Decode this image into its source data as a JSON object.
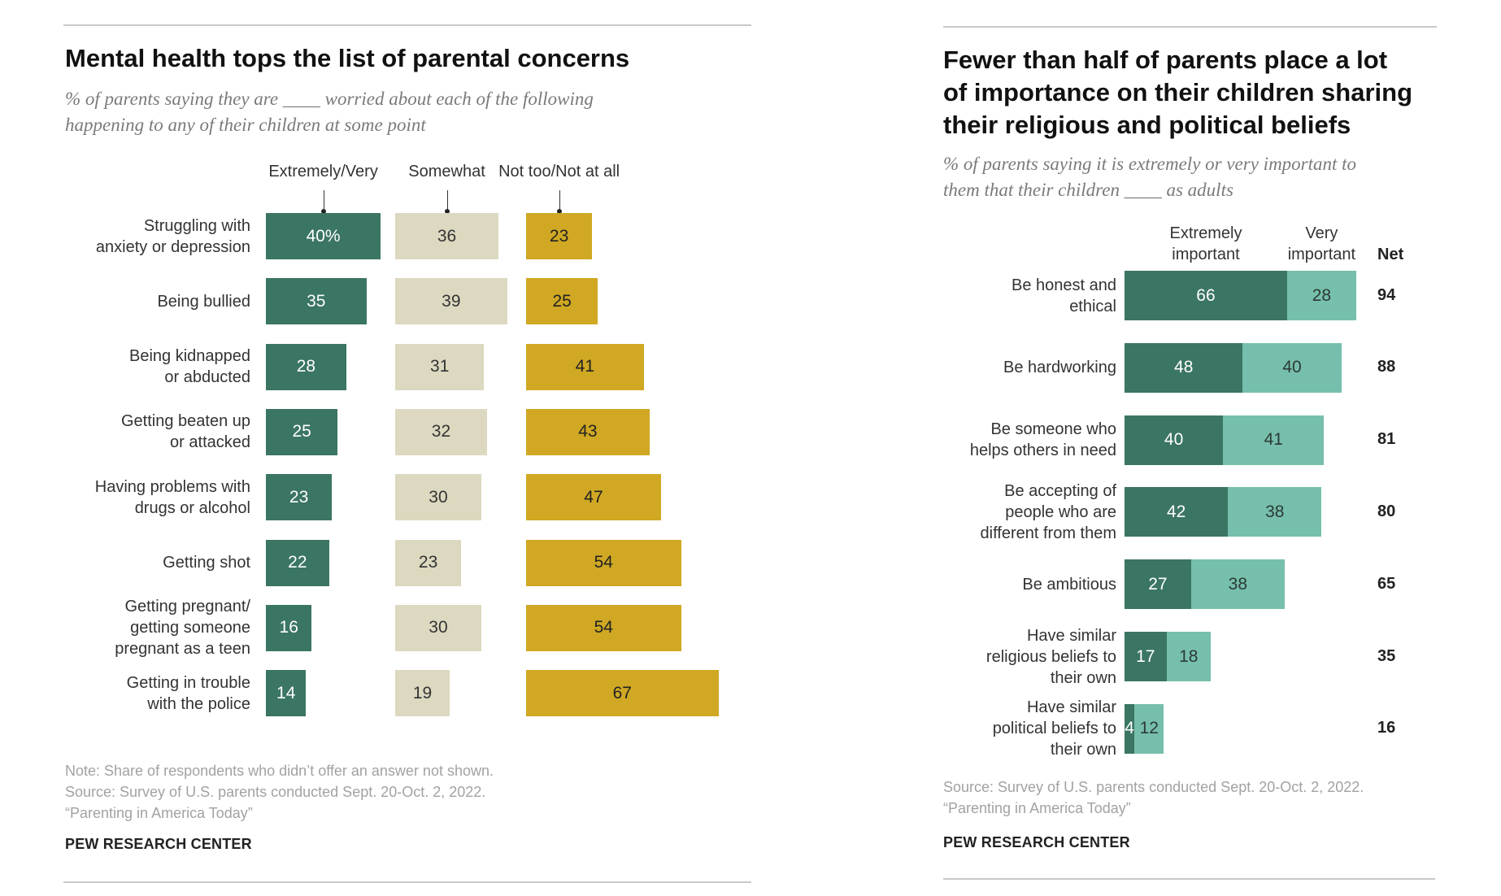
{
  "colors": {
    "extremely_very": "#3b7564",
    "somewhat": "#dcd9c0",
    "not_too": "#d0a823",
    "extremely_important": "#3b7564",
    "very_important": "#76bfac"
  },
  "left": {
    "title": "Mental health tops the list of parental concerns",
    "subtitle_lines": [
      "% of parents saying they are ____ worried about each of the following",
      "happening to any of their children at some point"
    ],
    "notes": [
      "Note: Share of respondents who didn’t offer an answer not shown.",
      "Source: Survey of U.S. parents conducted Sept. 20-Oct. 2, 2022.",
      "“Parenting in America Today”"
    ],
    "brand": "PEW RESEARCH CENTER"
  },
  "right": {
    "title_lines": [
      "Fewer than half of parents place a lot",
      "of importance on their children sharing",
      "their religious and political beliefs"
    ],
    "subtitle_lines": [
      "% of parents saying it is extremely or very important to",
      "them that their children ____ as adults"
    ],
    "notes": [
      "Source: Survey of U.S. parents conducted Sept. 20-Oct. 2, 2022.",
      "“Parenting in America Today”"
    ],
    "brand": "PEW RESEARCH CENTER"
  },
  "chart_data": [
    {
      "type": "bar",
      "orientation": "horizontal",
      "layout": "grouped-columns",
      "title": "Mental health tops the list of parental concerns",
      "subtitle": "% of parents saying they are ____ worried about each of the following happening to any of their children at some point",
      "categories": [
        [
          "Struggling with",
          "anxiety or depression"
        ],
        [
          "Being bullied"
        ],
        [
          "Being kidnapped",
          "or abducted"
        ],
        [
          "Getting beaten up",
          "or attacked"
        ],
        [
          "Having problems with",
          "drugs or alcohol"
        ],
        [
          "Getting shot"
        ],
        [
          "Getting pregnant/",
          "getting someone",
          "pregnant as a teen"
        ],
        [
          "Getting in trouble",
          "with the police"
        ]
      ],
      "series": [
        {
          "name": "Extremely/Very",
          "values": [
            40,
            35,
            28,
            25,
            23,
            22,
            16,
            14
          ],
          "labels": [
            "40%",
            "35",
            "28",
            "25",
            "23",
            "22",
            "16",
            "14"
          ]
        },
        {
          "name": "Somewhat",
          "values": [
            36,
            39,
            31,
            32,
            30,
            23,
            30,
            19
          ],
          "labels": [
            "36",
            "39",
            "31",
            "32",
            "30",
            "23",
            "30",
            "19"
          ]
        },
        {
          "name": "Not too/Not at all",
          "values": [
            23,
            25,
            41,
            43,
            47,
            54,
            54,
            67
          ],
          "labels": [
            "23",
            "25",
            "41",
            "43",
            "47",
            "54",
            "54",
            "67"
          ]
        }
      ],
      "xlim": [
        0,
        100
      ],
      "grid": false,
      "legend": "top"
    },
    {
      "type": "bar",
      "orientation": "horizontal",
      "stacked": true,
      "title": "Fewer than half of parents place a lot of importance on their children sharing their religious and political beliefs",
      "subtitle": "% of parents saying it is extremely or very important to them that their children ____ as adults",
      "categories": [
        [
          "Be honest and",
          "ethical"
        ],
        [
          "Be hardworking"
        ],
        [
          "Be someone who",
          "helps others in need"
        ],
        [
          "Be accepting of",
          "people who are",
          "different from them"
        ],
        [
          "Be ambitious"
        ],
        [
          "Have similar",
          "religious beliefs to",
          "their own"
        ],
        [
          "Have similar",
          "political beliefs to",
          "their own"
        ]
      ],
      "series": [
        {
          "name": "Extremely important",
          "header": [
            "Extremely",
            "important"
          ],
          "values": [
            66,
            48,
            40,
            42,
            27,
            17,
            4
          ]
        },
        {
          "name": "Very important",
          "header": [
            "Very",
            "important"
          ],
          "values": [
            28,
            40,
            41,
            38,
            38,
            18,
            12
          ]
        }
      ],
      "net": {
        "header": "Net",
        "values": [
          94,
          88,
          81,
          80,
          65,
          35,
          16
        ]
      },
      "xlim": [
        0,
        100
      ],
      "grid": false,
      "legend": "top"
    }
  ]
}
